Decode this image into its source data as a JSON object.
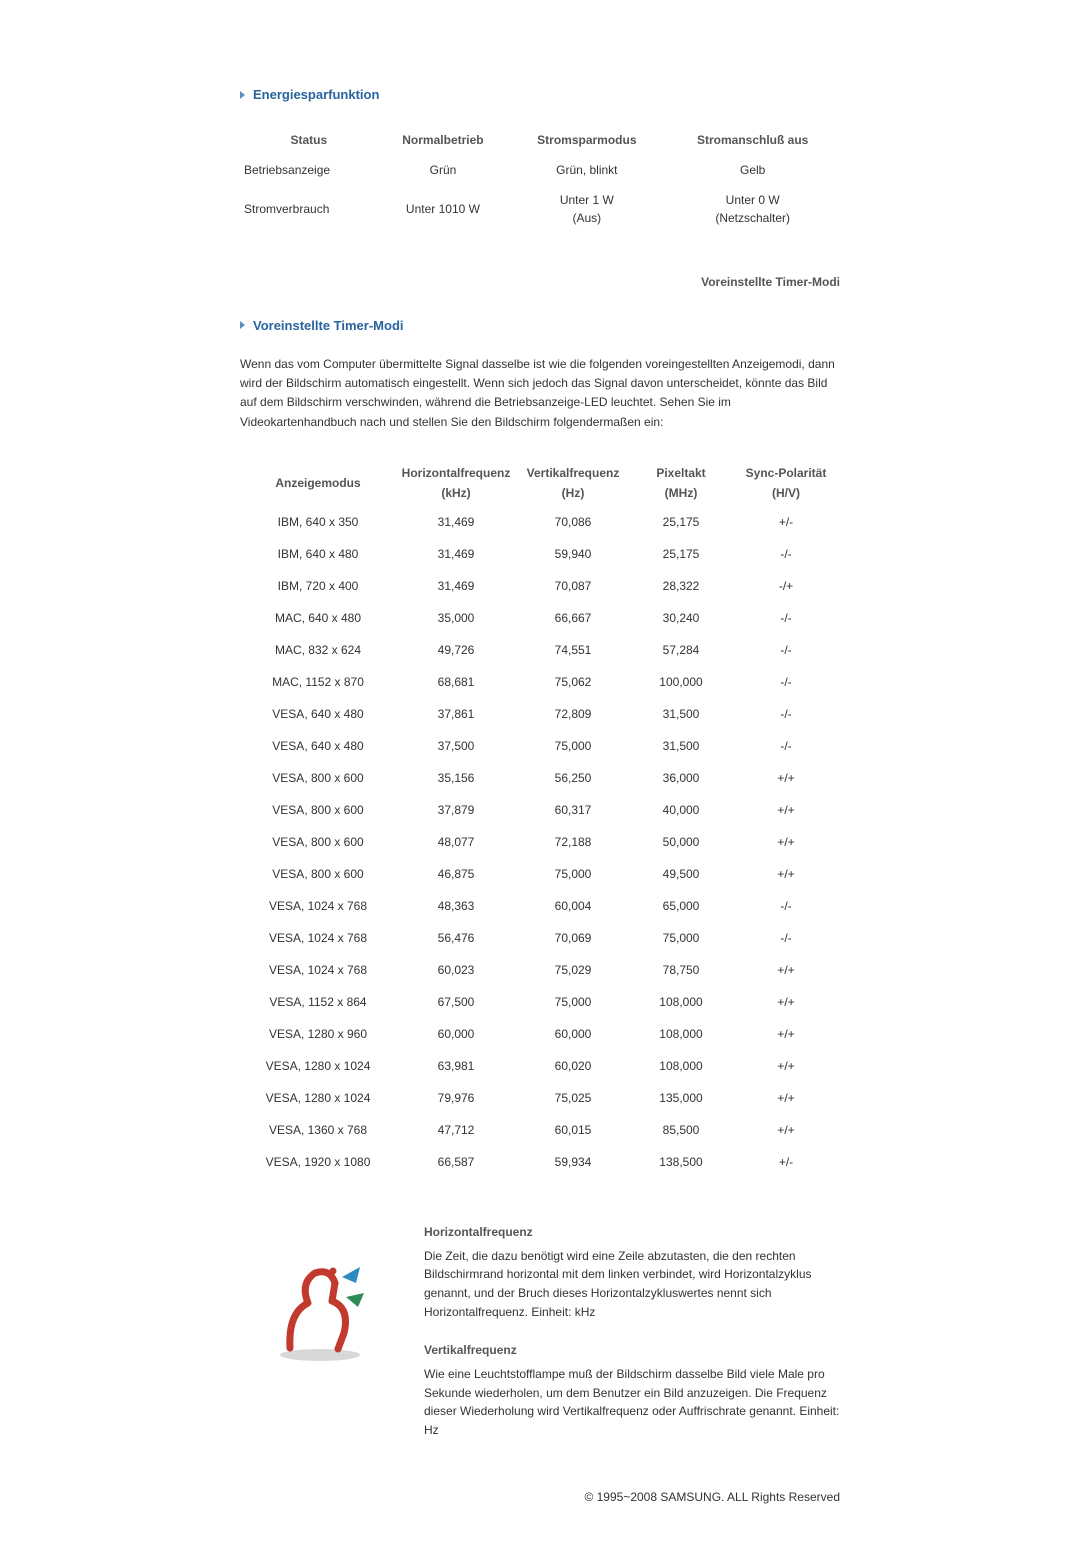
{
  "colors": {
    "heading": "#2864a0",
    "text": "#333333",
    "muted_bold": "#555555",
    "chevron": "#5a8fb8",
    "background": "#ffffff"
  },
  "typography": {
    "base_font_size_pt": 9,
    "heading_font_size_pt": 10,
    "font_family": "Arial"
  },
  "sections": {
    "energy": {
      "title": "Energiesparfunktion",
      "table": {
        "columns": [
          "Status",
          "Normalbetrieb",
          "Stromsparmodus",
          "Stromanschluß aus"
        ],
        "rows": [
          {
            "label": "Betriebsanzeige",
            "cells": [
              "Grün",
              "Grün, blinkt",
              "Gelb"
            ]
          },
          {
            "label": "Stromverbrauch",
            "cells": [
              "Unter 1010 W",
              "Unter 1 W\n(Aus)",
              "Unter 0 W\n(Netzschalter)"
            ]
          }
        ],
        "col_align": [
          "left",
          "center",
          "center",
          "center"
        ]
      }
    },
    "preset_link": "Voreinstellte Timer-Modi",
    "timing": {
      "title": "Voreinstellte Timer-Modi",
      "intro": "Wenn das vom Computer übermittelte Signal dasselbe ist wie die folgenden voreingestellten Anzeigemodi, dann wird der Bildschirm automatisch eingestellt. Wenn sich jedoch das Signal davon unterscheidet, könnte das Bild auf dem Bildschirm verschwinden, während die Betriebsanzeige-LED leuchtet. Sehen Sie im Videokartenhandbuch nach und stellen Sie den Bildschirm folgendermaßen ein:",
      "table": {
        "columns": [
          {
            "label": "Anzeigemodus",
            "sub": ""
          },
          {
            "label": "Horizontalfrequenz",
            "sub": "(kHz)"
          },
          {
            "label": "Vertikalfrequenz",
            "sub": "(Hz)"
          },
          {
            "label": "Pixeltakt",
            "sub": "(MHz)"
          },
          {
            "label": "Sync-Polarität",
            "sub": "(H/V)"
          }
        ],
        "col_widths_pct": [
          26,
          20,
          19,
          17,
          18
        ],
        "rows": [
          [
            "IBM, 640 x 350",
            "31,469",
            "70,086",
            "25,175",
            "+/-"
          ],
          [
            "IBM, 640 x 480",
            "31,469",
            "59,940",
            "25,175",
            "-/-"
          ],
          [
            "IBM, 720 x 400",
            "31,469",
            "70,087",
            "28,322",
            "-/+"
          ],
          [
            "MAC, 640 x 480",
            "35,000",
            "66,667",
            "30,240",
            "-/-"
          ],
          [
            "MAC, 832 x 624",
            "49,726",
            "74,551",
            "57,284",
            "-/-"
          ],
          [
            "MAC, 1152 x 870",
            "68,681",
            "75,062",
            "100,000",
            "-/-"
          ],
          [
            "VESA, 640 x 480",
            "37,861",
            "72,809",
            "31,500",
            "-/-"
          ],
          [
            "VESA, 640 x 480",
            "37,500",
            "75,000",
            "31,500",
            "-/-"
          ],
          [
            "VESA, 800 x 600",
            "35,156",
            "56,250",
            "36,000",
            "+/+"
          ],
          [
            "VESA, 800 x 600",
            "37,879",
            "60,317",
            "40,000",
            "+/+"
          ],
          [
            "VESA, 800 x 600",
            "48,077",
            "72,188",
            "50,000",
            "+/+"
          ],
          [
            "VESA, 800 x 600",
            "46,875",
            "75,000",
            "49,500",
            "+/+"
          ],
          [
            "VESA, 1024 x 768",
            "48,363",
            "60,004",
            "65,000",
            "-/-"
          ],
          [
            "VESA, 1024 x 768",
            "56,476",
            "70,069",
            "75,000",
            "-/-"
          ],
          [
            "VESA, 1024 x 768",
            "60,023",
            "75,029",
            "78,750",
            "+/+"
          ],
          [
            "VESA, 1152 x 864",
            "67,500",
            "75,000",
            "108,000",
            "+/+"
          ],
          [
            "VESA, 1280 x 960",
            "60,000",
            "60,000",
            "108,000",
            "+/+"
          ],
          [
            "VESA, 1280 x 1024",
            "63,981",
            "60,020",
            "108,000",
            "+/+"
          ],
          [
            "VESA, 1280 x 1024",
            "79,976",
            "75,025",
            "135,000",
            "+/+"
          ],
          [
            "VESA, 1360 x 768",
            "47,712",
            "60,015",
            "85,500",
            "+/+"
          ],
          [
            "VESA, 1920 x 1080",
            "66,587",
            "59,934",
            "138,500",
            "+/-"
          ]
        ]
      }
    },
    "definitions": {
      "hfreq": {
        "title": "Horizontalfrequenz",
        "body": "Die Zeit, die dazu benötigt wird eine Zeile abzutasten, die den rechten Bildschirmrand horizontal mit dem linken verbindet, wird Horizontalzyklus genannt, und der Bruch dieses Horizontalzykluswertes nennt sich Horizontalfrequenz. Einheit: kHz"
      },
      "vfreq": {
        "title": "Vertikalfrequenz",
        "body": "Wie eine Leuchtstofflampe muß der Bildschirm dasselbe Bild viele Male pro Sekunde wiederholen, um dem Benutzer ein Bild anzuzeigen. Die Frequenz dieser Wiederholung wird Vertikalfrequenz oder Auffrischrate genannt. Einheit: Hz"
      },
      "icon": {
        "name": "info-character-icon",
        "colors": {
          "figure": "#c23a2e",
          "accent1": "#2e8bc2",
          "accent2": "#2e8b57"
        }
      }
    }
  },
  "footer": "© 1995~2008 SAMSUNG. ALL Rights Reserved"
}
